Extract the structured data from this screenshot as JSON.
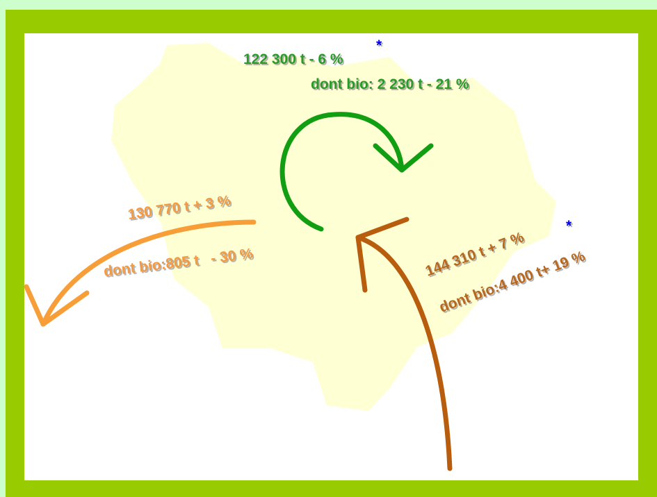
{
  "flows": [
    {
      "total": "122 300 t - 6 %",
      "note": "*",
      "bio": "dont bio: 2 230 t - 21 %"
    },
    {
      "total": "130 770 t + 3 %",
      "bio": "dont bio:805 t   - 30 %"
    },
    {
      "total": "144 310 t + 7 %",
      "note": "*",
      "bio": "dont bio:4 400 t+ 19 %"
    }
  ]
}
